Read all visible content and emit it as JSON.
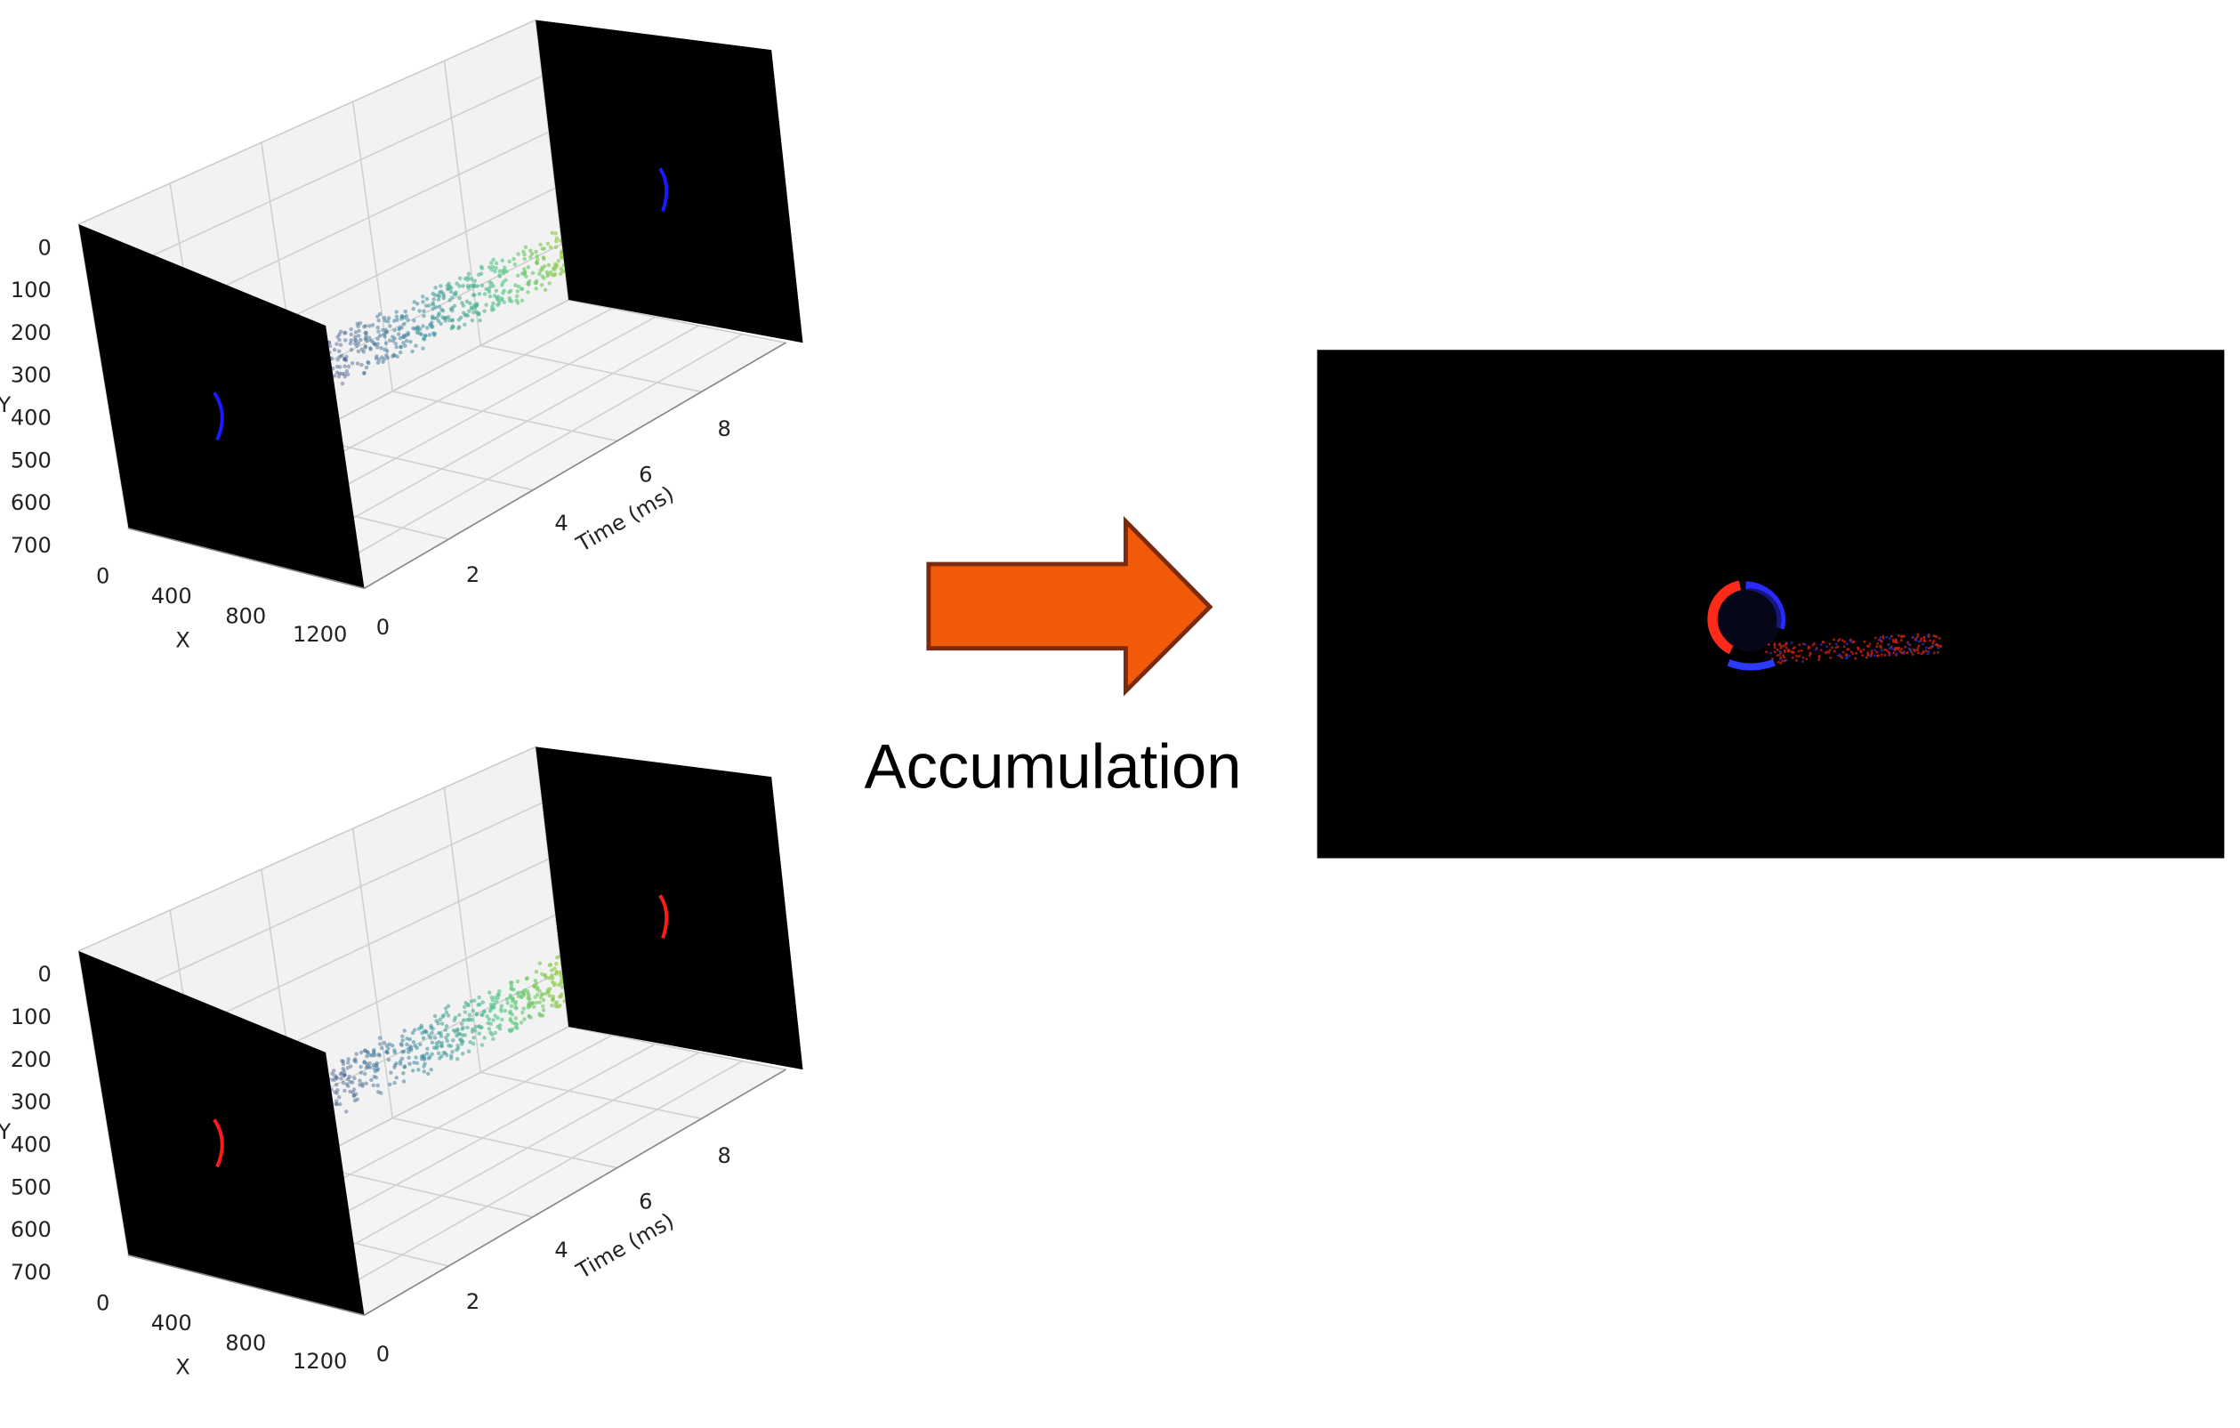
{
  "plots": [
    {
      "y_label": "Y",
      "x_label": "X",
      "t_label": "Time (ms)",
      "y_ticks": [
        "0",
        "100",
        "200",
        "300",
        "400",
        "500",
        "600",
        "700"
      ],
      "x_ticks": [
        "0",
        "400",
        "800",
        "1200"
      ],
      "t_ticks": [
        "0",
        "2",
        "4",
        "6",
        "8"
      ]
    },
    {
      "y_label": "Y",
      "x_label": "X",
      "t_label": "Time (ms)",
      "y_ticks": [
        "0",
        "100",
        "200",
        "300",
        "400",
        "500",
        "600",
        "700"
      ],
      "x_ticks": [
        "0",
        "400",
        "800",
        "1200"
      ],
      "t_ticks": [
        "0",
        "2",
        "4",
        "6",
        "8"
      ]
    }
  ],
  "arrow_label": "Accumulation"
}
